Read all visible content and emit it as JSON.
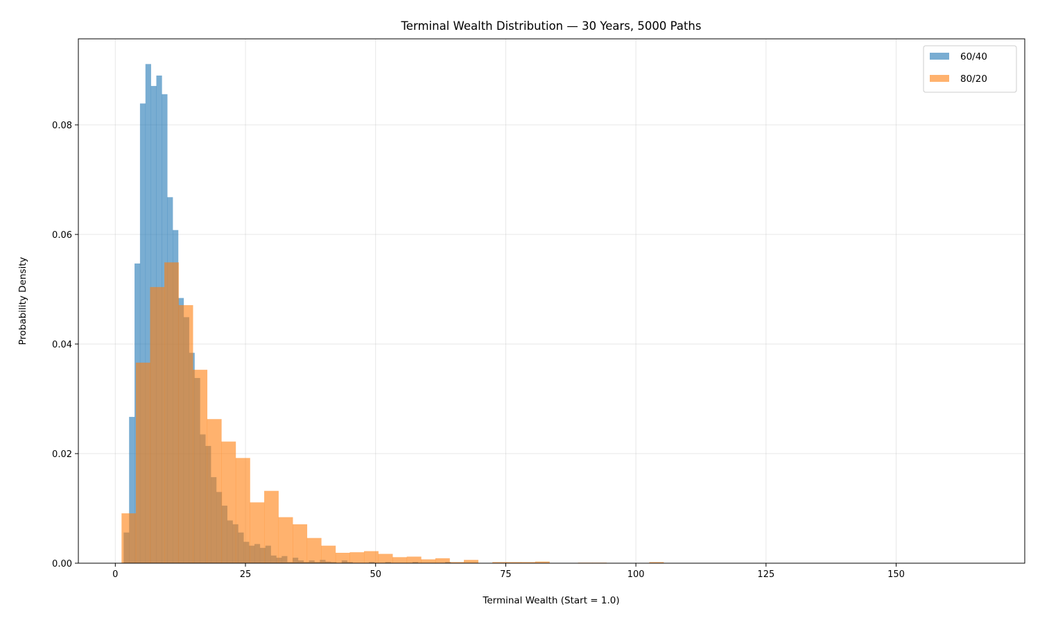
{
  "chart_data": {
    "type": "histogram",
    "title": "Terminal Wealth Distribution — 30 Years, 5000 Paths",
    "xlabel": "Terminal Wealth (Start = 1.0)",
    "ylabel": "Probability Density",
    "xlim": [
      -7.1,
      174.7
    ],
    "ylim": [
      0,
      0.0957
    ],
    "xticks": [
      0,
      25,
      50,
      75,
      100,
      125,
      150
    ],
    "xtick_labels": [
      "0",
      "25",
      "50",
      "75",
      "100",
      "125",
      "150"
    ],
    "yticks": [
      0,
      0.02,
      0.04,
      0.06,
      0.08
    ],
    "ytick_labels": [
      "0.00",
      "0.02",
      "0.04",
      "0.06",
      "0.08"
    ],
    "grid": true,
    "legend_position": "top-right",
    "series": [
      {
        "name": "60/40",
        "color": "#1f77b4",
        "alpha": 0.6,
        "bin_start": 1.6,
        "bin_width": 1.047,
        "values": [
          0.0056,
          0.0267,
          0.0547,
          0.0839,
          0.0911,
          0.0871,
          0.089,
          0.0856,
          0.0668,
          0.0608,
          0.0484,
          0.0449,
          0.0384,
          0.0338,
          0.0235,
          0.0214,
          0.0157,
          0.013,
          0.0105,
          0.0078,
          0.0071,
          0.0056,
          0.0039,
          0.0032,
          0.0035,
          0.0028,
          0.0032,
          0.0014,
          0.001,
          0.0013,
          0.0002,
          0.001,
          0.0005,
          0.0002,
          0.0005,
          0.0002,
          0.0006,
          0.0003,
          0.0002,
          0,
          0.0005,
          0.0002,
          0,
          0,
          0,
          0.0002,
          0,
          0,
          0.0002,
          0,
          0,
          0,
          0,
          0.0002,
          0,
          0,
          0,
          0,
          0,
          0.0002
        ]
      },
      {
        "name": "80/20",
        "color": "#ff7f0e",
        "alpha": 0.6,
        "bin_start": 1.2,
        "bin_width": 2.74,
        "values": [
          0.0091,
          0.0366,
          0.0504,
          0.0549,
          0.0471,
          0.0353,
          0.0263,
          0.0222,
          0.0192,
          0.0111,
          0.0132,
          0.0084,
          0.0071,
          0.0046,
          0.0032,
          0.0019,
          0.002,
          0.0022,
          0.0017,
          0.0011,
          0.0012,
          0.0007,
          0.0009,
          0.0002,
          0.0006,
          0,
          0.0002,
          0.0002,
          0.0002,
          0.0003,
          0,
          0,
          0.0001,
          0.0001,
          0,
          0,
          0,
          0.0002
        ]
      }
    ]
  }
}
